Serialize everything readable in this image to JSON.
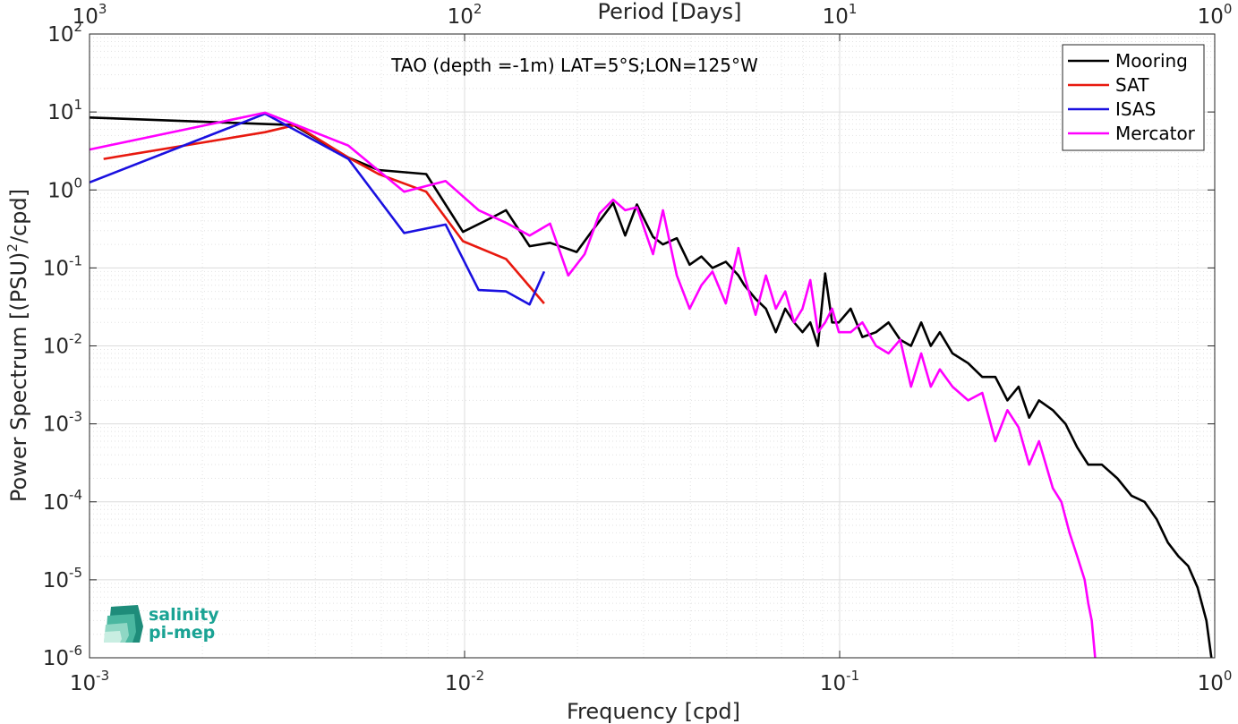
{
  "chart_data": {
    "type": "line",
    "title": "TAO (depth =-1m) LAT=5°S;LON=125°W",
    "xlabel": "Frequency [cpd]",
    "ylabel": "Power Spectrum [(PSU)",
    "ylabel_sup": "2",
    "ylabel_tail": "/cpd]",
    "top_xlabel": "Period [Days]",
    "x_scale": "log",
    "y_scale": "log",
    "xlim": [
      0.001,
      1
    ],
    "ylim": [
      1e-06,
      100
    ],
    "grid": true,
    "legend_position": "top-right",
    "x_ticks": [
      {
        "base": "10",
        "exp": "-3",
        "value": 0.001
      },
      {
        "base": "10",
        "exp": "-2",
        "value": 0.01
      },
      {
        "base": "10",
        "exp": "-1",
        "value": 0.1
      },
      {
        "base": "10",
        "exp": "0",
        "value": 1
      }
    ],
    "top_ticks": [
      {
        "base": "10",
        "exp": "3",
        "freq": 0.001
      },
      {
        "base": "10",
        "exp": "2",
        "freq": 0.01
      },
      {
        "base": "10",
        "exp": "1",
        "freq": 0.1
      },
      {
        "base": "10",
        "exp": "0",
        "freq": 1
      }
    ],
    "y_ticks": [
      {
        "base": "10",
        "exp": "2",
        "value": 100
      },
      {
        "base": "10",
        "exp": "1",
        "value": 10
      },
      {
        "base": "10",
        "exp": "0",
        "value": 1
      },
      {
        "base": "10",
        "exp": "-1",
        "value": 0.1
      },
      {
        "base": "10",
        "exp": "-2",
        "value": 0.01
      },
      {
        "base": "10",
        "exp": "-3",
        "value": 0.001
      },
      {
        "base": "10",
        "exp": "-4",
        "value": 0.0001
      },
      {
        "base": "10",
        "exp": "-5",
        "value": 1e-05
      },
      {
        "base": "10",
        "exp": "-6",
        "value": 1e-06
      }
    ],
    "series": [
      {
        "name": "Mooring",
        "color": "#000000",
        "points": [
          [
            0.001,
            8.5
          ],
          [
            0.00294,
            7.0
          ],
          [
            0.0035,
            6.8
          ],
          [
            0.0049,
            2.6
          ],
          [
            0.0059,
            1.8
          ],
          [
            0.0079,
            1.6
          ],
          [
            0.0099,
            0.29
          ],
          [
            0.0119,
            0.45
          ],
          [
            0.0129,
            0.55
          ],
          [
            0.0149,
            0.19
          ],
          [
            0.0169,
            0.21
          ],
          [
            0.0199,
            0.16
          ],
          [
            0.0219,
            0.3
          ],
          [
            0.0249,
            0.68
          ],
          [
            0.0268,
            0.26
          ],
          [
            0.0288,
            0.65
          ],
          [
            0.0318,
            0.25
          ],
          [
            0.0338,
            0.2
          ],
          [
            0.0368,
            0.24
          ],
          [
            0.0398,
            0.11
          ],
          [
            0.0428,
            0.14
          ],
          [
            0.0458,
            0.1
          ],
          [
            0.0497,
            0.12
          ],
          [
            0.0537,
            0.08
          ],
          [
            0.0557,
            0.06
          ],
          [
            0.0597,
            0.04
          ],
          [
            0.0636,
            0.03
          ],
          [
            0.0676,
            0.015
          ],
          [
            0.0716,
            0.03
          ],
          [
            0.0756,
            0.02
          ],
          [
            0.0796,
            0.015
          ],
          [
            0.0835,
            0.02
          ],
          [
            0.0875,
            0.01
          ],
          [
            0.0915,
            0.085
          ],
          [
            0.0955,
            0.02
          ],
          [
            0.0995,
            0.02
          ],
          [
            0.107,
            0.03
          ],
          [
            0.115,
            0.013
          ],
          [
            0.125,
            0.015
          ],
          [
            0.135,
            0.02
          ],
          [
            0.145,
            0.012
          ],
          [
            0.155,
            0.01
          ],
          [
            0.165,
            0.02
          ],
          [
            0.175,
            0.01
          ],
          [
            0.185,
            0.015
          ],
          [
            0.2,
            0.008
          ],
          [
            0.22,
            0.006
          ],
          [
            0.24,
            0.004
          ],
          [
            0.26,
            0.004
          ],
          [
            0.28,
            0.002
          ],
          [
            0.3,
            0.003
          ],
          [
            0.32,
            0.0012
          ],
          [
            0.34,
            0.002
          ],
          [
            0.37,
            0.0015
          ],
          [
            0.4,
            0.001
          ],
          [
            0.43,
            0.0005
          ],
          [
            0.46,
            0.0003
          ],
          [
            0.5,
            0.0003
          ],
          [
            0.55,
            0.0002
          ],
          [
            0.6,
            0.00012
          ],
          [
            0.65,
            0.0001
          ],
          [
            0.7,
            6e-05
          ],
          [
            0.75,
            3e-05
          ],
          [
            0.8,
            2e-05
          ],
          [
            0.85,
            1.5e-05
          ],
          [
            0.9,
            8e-06
          ],
          [
            0.95,
            3e-06
          ],
          [
            0.98,
            1e-06
          ]
        ]
      },
      {
        "name": "SAT",
        "color": "#e8190f",
        "points": [
          [
            0.00109,
            2.5
          ],
          [
            0.00294,
            5.5
          ],
          [
            0.00354,
            6.8
          ],
          [
            0.0049,
            2.6
          ],
          [
            0.0059,
            1.6
          ],
          [
            0.0079,
            0.95
          ],
          [
            0.0099,
            0.22
          ],
          [
            0.0129,
            0.13
          ],
          [
            0.0163,
            0.035
          ]
        ]
      },
      {
        "name": "ISAS",
        "color": "#1a10e0",
        "points": [
          [
            0.001,
            1.25
          ],
          [
            0.00294,
            9.5
          ],
          [
            0.0049,
            2.5
          ],
          [
            0.0069,
            0.28
          ],
          [
            0.0089,
            0.36
          ],
          [
            0.0109,
            0.052
          ],
          [
            0.0129,
            0.05
          ],
          [
            0.0149,
            0.034
          ],
          [
            0.0163,
            0.09
          ]
        ]
      },
      {
        "name": "Mercator",
        "color": "#ff00ff",
        "points": [
          [
            0.001,
            3.3
          ],
          [
            0.00294,
            9.8
          ],
          [
            0.0049,
            3.7
          ],
          [
            0.0069,
            0.95
          ],
          [
            0.0089,
            1.3
          ],
          [
            0.0109,
            0.55
          ],
          [
            0.0129,
            0.38
          ],
          [
            0.0149,
            0.26
          ],
          [
            0.0169,
            0.37
          ],
          [
            0.0189,
            0.08
          ],
          [
            0.0209,
            0.15
          ],
          [
            0.0229,
            0.5
          ],
          [
            0.0249,
            0.75
          ],
          [
            0.0268,
            0.55
          ],
          [
            0.0288,
            0.6
          ],
          [
            0.0318,
            0.15
          ],
          [
            0.0338,
            0.55
          ],
          [
            0.0368,
            0.08
          ],
          [
            0.0398,
            0.03
          ],
          [
            0.0428,
            0.06
          ],
          [
            0.0458,
            0.09
          ],
          [
            0.0497,
            0.035
          ],
          [
            0.0537,
            0.18
          ],
          [
            0.0557,
            0.08
          ],
          [
            0.0597,
            0.025
          ],
          [
            0.0636,
            0.08
          ],
          [
            0.0676,
            0.03
          ],
          [
            0.0716,
            0.05
          ],
          [
            0.0756,
            0.02
          ],
          [
            0.0796,
            0.03
          ],
          [
            0.0835,
            0.07
          ],
          [
            0.0875,
            0.015
          ],
          [
            0.0915,
            0.02
          ],
          [
            0.0955,
            0.03
          ],
          [
            0.0995,
            0.015
          ],
          [
            0.107,
            0.015
          ],
          [
            0.115,
            0.02
          ],
          [
            0.125,
            0.01
          ],
          [
            0.135,
            0.008
          ],
          [
            0.145,
            0.012
          ],
          [
            0.155,
            0.003
          ],
          [
            0.165,
            0.008
          ],
          [
            0.175,
            0.003
          ],
          [
            0.185,
            0.005
          ],
          [
            0.2,
            0.003
          ],
          [
            0.22,
            0.002
          ],
          [
            0.24,
            0.0025
          ],
          [
            0.26,
            0.0006
          ],
          [
            0.28,
            0.0015
          ],
          [
            0.3,
            0.0009
          ],
          [
            0.32,
            0.0003
          ],
          [
            0.34,
            0.0006
          ],
          [
            0.37,
            0.00015
          ],
          [
            0.39,
            0.0001
          ],
          [
            0.41,
            4e-05
          ],
          [
            0.43,
            2e-05
          ],
          [
            0.45,
            1e-05
          ],
          [
            0.46,
            5e-06
          ],
          [
            0.47,
            3e-06
          ],
          [
            0.48,
            1e-06
          ]
        ]
      }
    ]
  },
  "logo": {
    "line1": "salinity",
    "line2": "pi-mep"
  }
}
